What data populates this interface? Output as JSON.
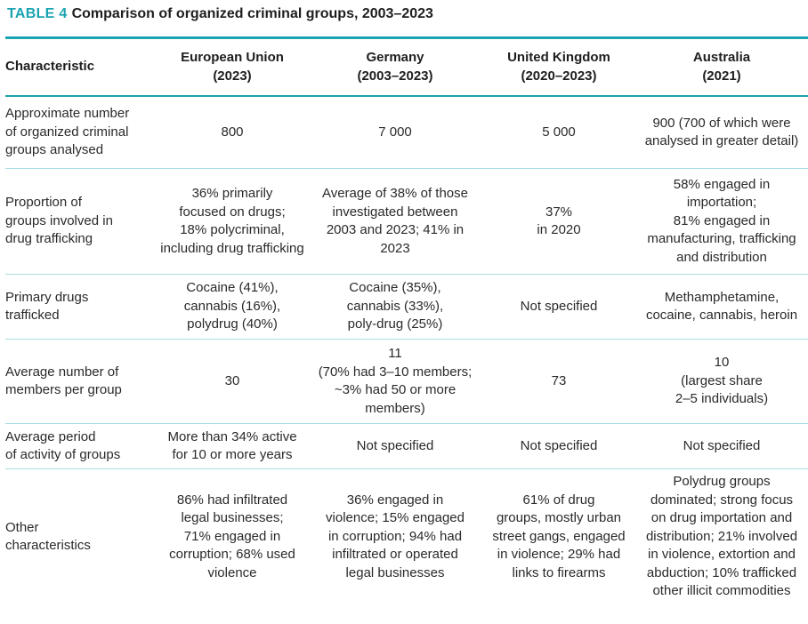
{
  "title": {
    "label": "TABLE 4",
    "text": "Comparison of organized criminal groups, 2003–2023"
  },
  "headers": [
    "Characteristic",
    "European Union\n(2023)",
    "Germany\n(2003–2023)",
    "United Kingdom\n(2020–2023)",
    "Australia\n(2021)"
  ],
  "rows": [
    {
      "label": "Approximate number\nof organized criminal\ngroups analysed",
      "eu": "800",
      "de": "7 000",
      "uk": "5 000",
      "au": "900 (700 of which were\nanalysed in greater detail)"
    },
    {
      "label": "Proportion of\ngroups involved in\ndrug trafficking",
      "eu": "36% primarily\nfocused on drugs;\n18% polycriminal,\nincluding drug trafficking",
      "de": "Average of 38% of those\ninvestigated between\n2003 and 2023; 41% in\n2023",
      "uk": "37%\nin 2020",
      "au": "58% engaged in\nimportation;\n81% engaged in\nmanufacturing, trafficking\nand distribution"
    },
    {
      "label": "Primary drugs\ntrafficked",
      "eu": "Cocaine (41%),\ncannabis (16%),\npolydrug (40%)",
      "de": "Cocaine (35%),\ncannabis (33%),\npoly-drug (25%)",
      "uk": "Not specified",
      "au": "Methamphetamine,\ncocaine, cannabis, heroin"
    },
    {
      "label": "Average number of\nmembers per group",
      "eu": "30",
      "de": "11\n(70% had 3–10 members;\n~3% had 50 or more\nmembers)",
      "uk": "73",
      "au": "10\n(largest share\n2–5 individuals)"
    },
    {
      "label": "Average period\nof activity of groups",
      "eu": "More than 34% active\nfor 10 or more years",
      "de": "Not specified",
      "uk": "Not specified",
      "au": "Not specified"
    },
    {
      "label": "Other\ncharacteristics",
      "eu": "86% had infiltrated\nlegal businesses;\n71% engaged in\ncorruption; 68% used\nviolence",
      "de": "36% engaged in\nviolence; 15% engaged\nin corruption; 94% had\ninfiltrated or operated\nlegal businesses",
      "uk": "61% of drug\ngroups, mostly urban\nstreet gangs, engaged\nin violence; 29% had\nlinks to firearms",
      "au": "Polydrug groups\ndominated; strong focus\non drug importation and\ndistribution; 21% involved\nin violence, extortion and\nabduction; 10% trafficked\nother illicit commodities"
    }
  ]
}
